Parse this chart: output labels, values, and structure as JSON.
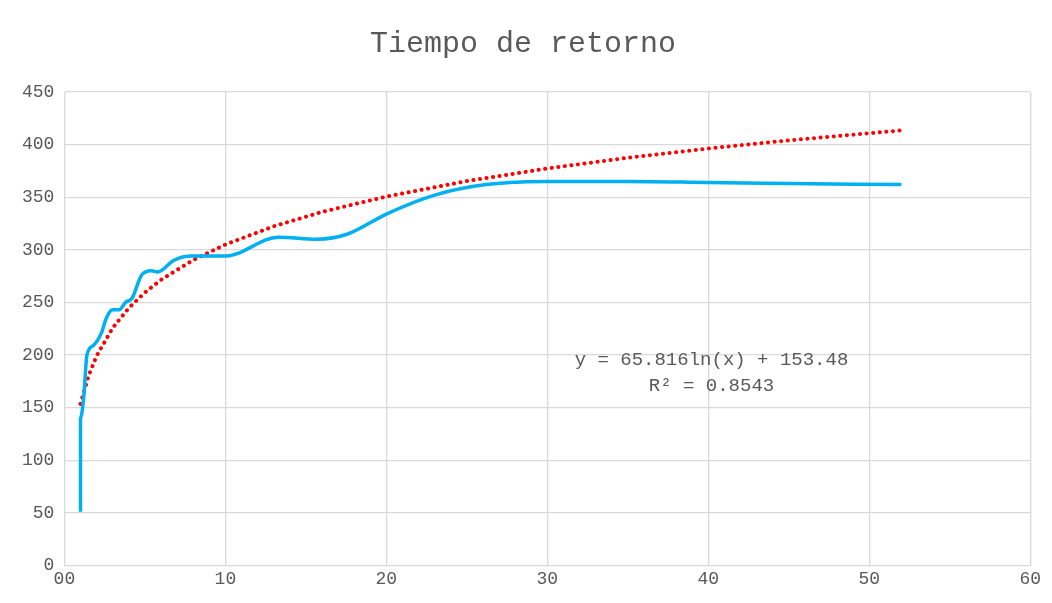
{
  "chart_data": {
    "type": "line",
    "title": "Tiempo de retorno",
    "xlim": [
      0,
      60
    ],
    "xticks": [
      {
        "value": 0,
        "label": "00"
      },
      10,
      20,
      30,
      40,
      50,
      60
    ],
    "ylim": [
      0,
      450
    ],
    "yticks": [
      0,
      50,
      100,
      150,
      200,
      250,
      300,
      350,
      400,
      450
    ],
    "grid": true,
    "legend": false,
    "marker": "none",
    "annotations": [
      "y = 65.816ln(x) + 153.48",
      "R² = 0.8543"
    ],
    "series": [
      {
        "color": "#00b0f0",
        "line_style": "solid",
        "x": [
          1,
          1,
          1.2,
          1.4,
          1.8,
          2.3,
          2.6,
          3,
          3.4,
          3.8,
          4.2,
          4.8,
          5.4,
          5.8,
          6.8,
          7.9,
          8.9,
          10,
          13.3,
          15.7,
          17.6,
          20,
          23,
          26.2,
          30,
          35,
          40,
          45,
          52
        ],
        "values": [
          51,
          140,
          160,
          200,
          209,
          221,
          235,
          243,
          243,
          250,
          254,
          276,
          280,
          279,
          290,
          294,
          294,
          294,
          312,
          310,
          315,
          334,
          352,
          362,
          365,
          365,
          364,
          363,
          362
        ]
      },
      {
        "color": "#ff0000",
        "line_style": "dotted",
        "x": [
          1,
          1.5,
          2,
          3,
          4,
          5,
          6,
          8,
          10,
          13,
          16,
          20,
          25,
          30,
          35,
          40,
          45,
          52
        ],
        "values": [
          153.5,
          180.2,
          199.1,
          225.8,
          244.7,
          259.4,
          271.4,
          290.3,
          305.0,
          322.3,
          336.0,
          350.6,
          365.3,
          377.3,
          387.5,
          396.3,
          404.0,
          413.5
        ]
      }
    ]
  }
}
